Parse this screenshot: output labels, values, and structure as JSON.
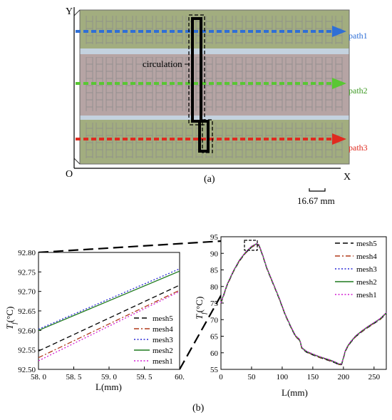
{
  "layout_figure": {
    "axis_y": "Y",
    "axis_x": "X",
    "origin": "O",
    "circulation_label": "circulation",
    "paths": [
      {
        "label": "path1",
        "color": "#2f6fd6"
      },
      {
        "label": "path2",
        "color": "#59c733"
      },
      {
        "label": "path3",
        "color": "#e02a1f"
      }
    ],
    "subfigure_label": "(a)",
    "scale_bar_label": "16.67 mm"
  },
  "subfigure_b_label": "(b)",
  "chart_data": [
    {
      "type": "line",
      "xlabel": "L(mm)",
      "ylabel": "T_f(°C)",
      "xlim": [
        58.0,
        60.0
      ],
      "ylim": [
        92.5,
        92.8
      ],
      "x_ticks": [
        "58. 0",
        "58. 5",
        "59. 0",
        "59. 5",
        "60."
      ],
      "y_ticks": [
        "92.50",
        "92.55",
        "92.60",
        "92.65",
        "92.70",
        "92.75",
        "92.80"
      ],
      "legend_position": "bottom-right",
      "series": [
        {
          "name": "mesh5",
          "style": "dashed",
          "color": "#000000",
          "x": [
            58.0,
            60.0
          ],
          "y": [
            92.547,
            92.716
          ]
        },
        {
          "name": "mesh4",
          "style": "dashdot",
          "color": "#b03a1a",
          "x": [
            58.0,
            60.0
          ],
          "y": [
            92.53,
            92.703
          ]
        },
        {
          "name": "mesh3",
          "style": "dotted",
          "color": "#2a2ad6",
          "x": [
            58.0,
            60.0
          ],
          "y": [
            92.603,
            92.758
          ]
        },
        {
          "name": "mesh2",
          "style": "solid",
          "color": "#1f7a1f",
          "x": [
            58.0,
            60.0
          ],
          "y": [
            92.6,
            92.752
          ]
        },
        {
          "name": "mesh1",
          "style": "dotted",
          "color": "#d21fd2",
          "x": [
            58.0,
            60.0
          ],
          "y": [
            92.522,
            92.7
          ]
        }
      ]
    },
    {
      "type": "line",
      "xlabel": "L(mm)",
      "ylabel": "T_f(°C)",
      "xlim": [
        0,
        270
      ],
      "ylim": [
        55,
        95
      ],
      "x_ticks": [
        "0",
        "50",
        "100",
        "150",
        "200",
        "250"
      ],
      "y_ticks": [
        "55",
        "60",
        "65",
        "70",
        "75",
        "80",
        "85",
        "90",
        "95"
      ],
      "legend_position": "top-right",
      "series": [
        {
          "name": "mesh5",
          "style": "dashed",
          "color": "#000000"
        },
        {
          "name": "mesh4",
          "style": "dashdot",
          "color": "#b03a1a"
        },
        {
          "name": "mesh3",
          "style": "dotted",
          "color": "#2a2ad6"
        },
        {
          "name": "mesh2",
          "style": "solid",
          "color": "#1f7a1f"
        },
        {
          "name": "mesh1",
          "style": "dotted",
          "color": "#d21fd2"
        }
      ],
      "shared_curve": {
        "x": [
          0,
          10,
          20,
          30,
          40,
          50,
          58,
          62,
          68,
          75,
          85,
          95,
          105,
          115,
          122,
          128,
          130,
          132,
          135,
          140,
          150,
          160,
          170,
          180,
          188,
          193,
          197,
          200,
          203,
          207,
          212,
          220,
          230,
          240,
          250,
          260,
          270
        ],
        "y": [
          75,
          80.5,
          84.5,
          87.8,
          90.2,
          92.0,
          92.8,
          92.5,
          89.5,
          85.5,
          81.0,
          76.5,
          71.5,
          67.5,
          65.0,
          64.0,
          63.0,
          61.5,
          61.0,
          60.3,
          59.5,
          58.8,
          58.2,
          57.6,
          57.0,
          56.5,
          56.6,
          58.5,
          60.5,
          62.0,
          63.3,
          65.0,
          66.5,
          67.8,
          69.0,
          70.2,
          72.0
        ]
      }
    }
  ]
}
